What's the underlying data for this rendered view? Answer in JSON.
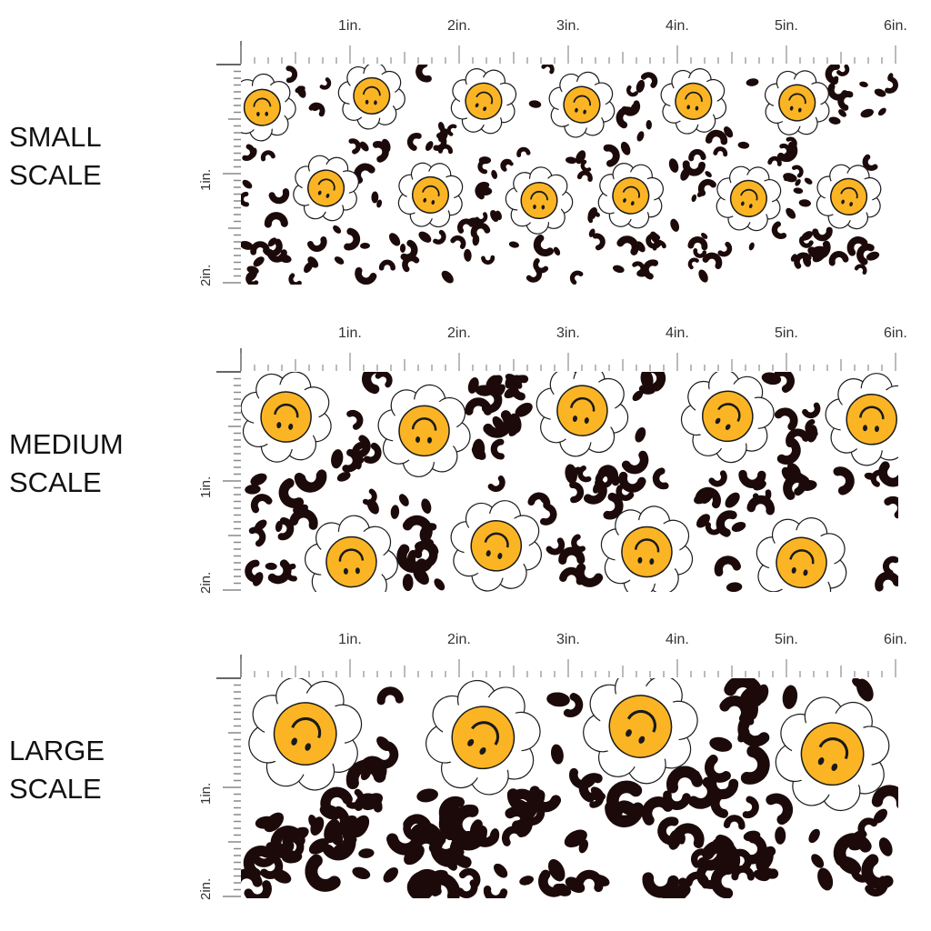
{
  "colors": {
    "face": "#FBB524",
    "outline": "#1a1a1a",
    "spot": "#1c0a0a",
    "background": "#ffffff"
  },
  "ruler": {
    "horizontal_labels": [
      "1in.",
      "2in.",
      "3in.",
      "4in.",
      "5in.",
      "6in."
    ],
    "vertical_labels": [
      "1in.",
      "2in."
    ]
  },
  "panels": [
    {
      "label_line1": "SMALL",
      "label_line2": "SCALE",
      "pattern": "upside-down smiley daisies on leopard spots",
      "flower_size": "small"
    },
    {
      "label_line1": "MEDIUM",
      "label_line2": "SCALE",
      "pattern": "upside-down smiley daisies on leopard spots",
      "flower_size": "medium"
    },
    {
      "label_line1": "LARGE",
      "label_line2": "SCALE",
      "pattern": "upside-down smiley daisies on leopard spots",
      "flower_size": "large"
    }
  ]
}
